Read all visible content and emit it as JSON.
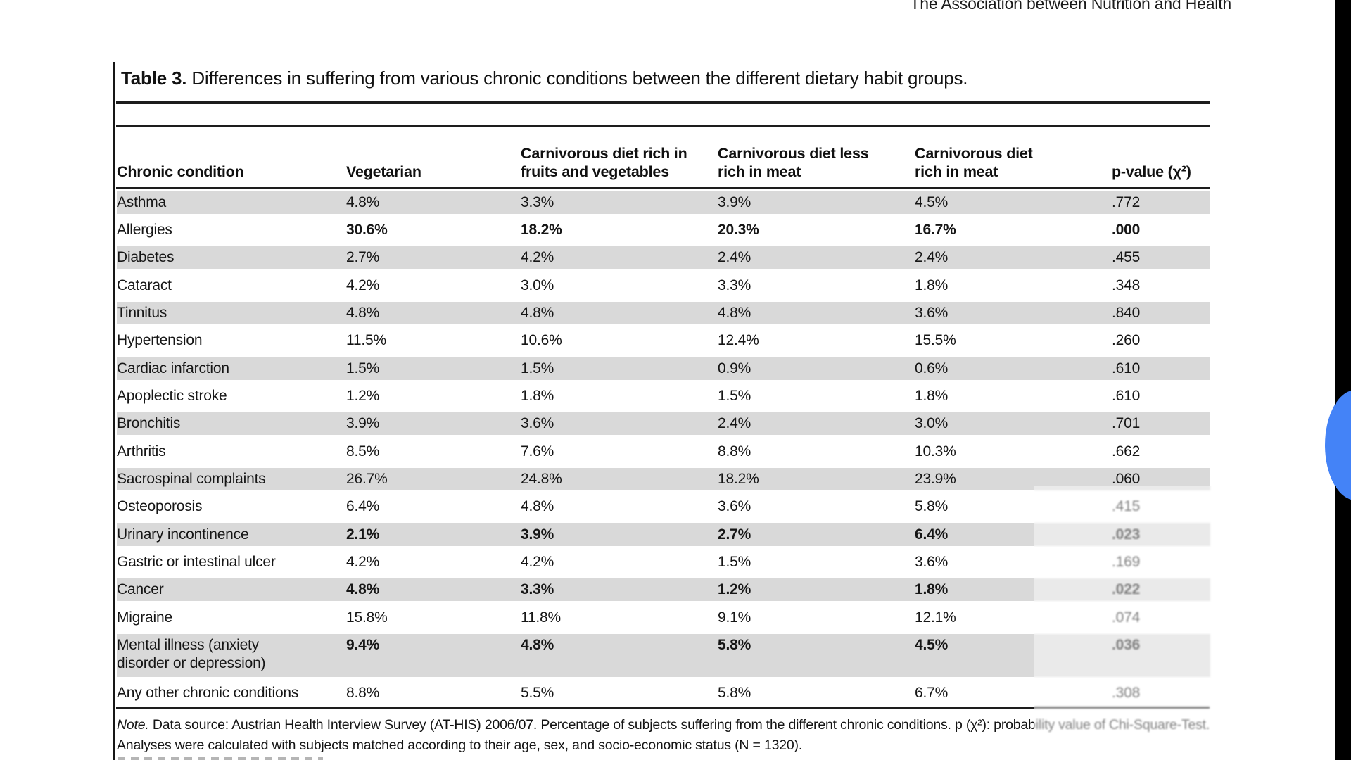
{
  "running_head": "The Association between Nutrition and Health",
  "table": {
    "caption_label": "Table 3.",
    "caption_text": "Differences in suffering from various chronic conditions between the different dietary habit groups.",
    "columns": [
      "Chronic condition",
      "Vegetarian",
      "Carnivorous diet rich in fruits and vegetables",
      "Carnivorous diet less rich in meat",
      "Carnivorous diet rich in meat",
      "p-value (χ²)"
    ],
    "rows": [
      {
        "condition": "Asthma",
        "values": [
          "4.8%",
          "3.3%",
          "3.9%",
          "4.5%",
          ".772"
        ],
        "emphasis": false,
        "two_line": false
      },
      {
        "condition": "Allergies",
        "values": [
          "30.6%",
          "18.2%",
          "20.3%",
          "16.7%",
          ".000"
        ],
        "emphasis": true,
        "two_line": false
      },
      {
        "condition": "Diabetes",
        "values": [
          "2.7%",
          "4.2%",
          "2.4%",
          "2.4%",
          ".455"
        ],
        "emphasis": false,
        "two_line": false
      },
      {
        "condition": "Cataract",
        "values": [
          "4.2%",
          "3.0%",
          "3.3%",
          "1.8%",
          ".348"
        ],
        "emphasis": false,
        "two_line": false
      },
      {
        "condition": "Tinnitus",
        "values": [
          "4.8%",
          "4.8%",
          "4.8%",
          "3.6%",
          ".840"
        ],
        "emphasis": false,
        "two_line": false
      },
      {
        "condition": "Hypertension",
        "values": [
          "11.5%",
          "10.6%",
          "12.4%",
          "15.5%",
          ".260"
        ],
        "emphasis": false,
        "two_line": false
      },
      {
        "condition": "Cardiac infarction",
        "values": [
          "1.5%",
          "1.5%",
          "0.9%",
          "0.6%",
          ".610"
        ],
        "emphasis": false,
        "two_line": false
      },
      {
        "condition": "Apoplectic stroke",
        "values": [
          "1.2%",
          "1.8%",
          "1.5%",
          "1.8%",
          ".610"
        ],
        "emphasis": false,
        "two_line": false
      },
      {
        "condition": "Bronchitis",
        "values": [
          "3.9%",
          "3.6%",
          "2.4%",
          "3.0%",
          ".701"
        ],
        "emphasis": false,
        "two_line": false
      },
      {
        "condition": "Arthritis",
        "values": [
          "8.5%",
          "7.6%",
          "8.8%",
          "10.3%",
          ".662"
        ],
        "emphasis": false,
        "two_line": false
      },
      {
        "condition": "Sacrospinal complaints",
        "values": [
          "26.7%",
          "24.8%",
          "18.2%",
          "23.9%",
          ".060"
        ],
        "emphasis": false,
        "two_line": false
      },
      {
        "condition": "Osteoporosis",
        "values": [
          "6.4%",
          "4.8%",
          "3.6%",
          "5.8%",
          ".415"
        ],
        "emphasis": false,
        "two_line": false
      },
      {
        "condition": "Urinary incontinence",
        "values": [
          "2.1%",
          "3.9%",
          "2.7%",
          "6.4%",
          ".023"
        ],
        "emphasis": true,
        "two_line": false
      },
      {
        "condition": "Gastric or intestinal ulcer",
        "values": [
          "4.2%",
          "4.2%",
          "1.5%",
          "3.6%",
          ".169"
        ],
        "emphasis": false,
        "two_line": false
      },
      {
        "condition": "Cancer",
        "values": [
          "4.8%",
          "3.3%",
          "1.2%",
          "1.8%",
          ".022"
        ],
        "emphasis": true,
        "two_line": false
      },
      {
        "condition": "Migraine",
        "values": [
          "15.8%",
          "11.8%",
          "9.1%",
          "12.1%",
          ".074"
        ],
        "emphasis": false,
        "two_line": false
      },
      {
        "condition": "Mental illness (anxiety disorder or depression)",
        "values": [
          "9.4%",
          "4.8%",
          "5.8%",
          "4.5%",
          ".036"
        ],
        "emphasis": true,
        "two_line": true
      },
      {
        "condition": "Any other chronic conditions",
        "values": [
          "8.8%",
          "5.5%",
          "5.8%",
          "6.7%",
          ".308"
        ],
        "emphasis": false,
        "two_line": false
      }
    ],
    "note_label": "Note.",
    "note_text": "Data source: Austrian Health Interview Survey (AT-HIS) 2006/07. Percentage of subjects suffering from the different chronic conditions. p (χ²): probability value of Chi-Square-Test. Analyses were calculated with subjects matched according to their age, sex, and socio-economic status (N = 1320)."
  },
  "colors": {
    "row_shade": "#d9d9d9",
    "accent_blue": "#4483f7",
    "edge_strip": "#000000"
  }
}
